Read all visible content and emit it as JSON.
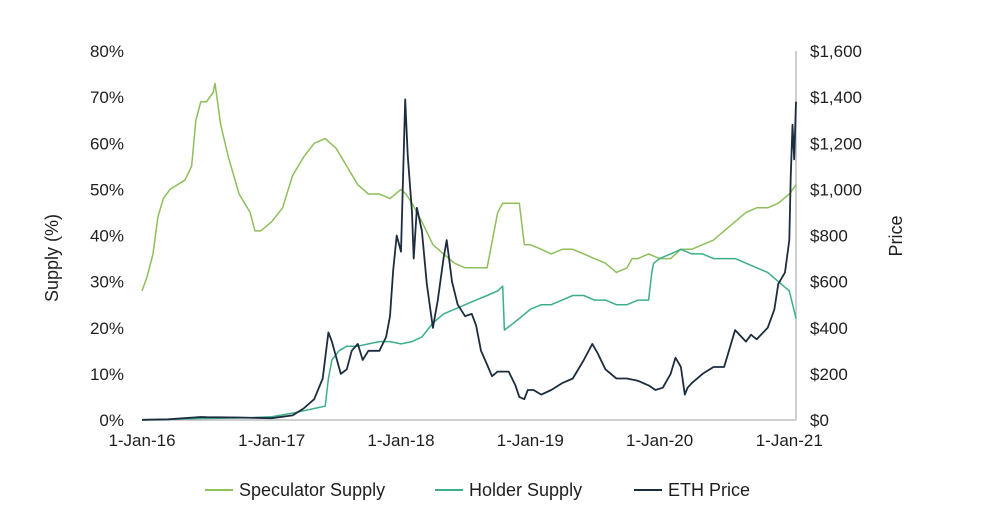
{
  "chart_data": {
    "type": "line",
    "title": "",
    "xlabel": "",
    "ylabel": "Supply (%)",
    "ylabel_right": "Price",
    "x_ticks": [
      "1-Jan-16",
      "1-Jan-17",
      "1-Jan-18",
      "1-Jan-19",
      "1-Jan-20",
      "1-Jan-21"
    ],
    "y_ticks_left": [
      "0%",
      "10%",
      "20%",
      "30%",
      "40%",
      "50%",
      "60%",
      "70%",
      "80%"
    ],
    "y_ticks_right": [
      "$0",
      "$200",
      "$400",
      "$600",
      "$800",
      "$1,000",
      "$1,200",
      "$1,400",
      "$1,600"
    ],
    "xlim": [
      "2016-01-01",
      "2021-01-20"
    ],
    "ylim_left": [
      0,
      80
    ],
    "ylim_right": [
      0,
      1600
    ],
    "grid": false,
    "legend_position": "bottom",
    "series": [
      {
        "name": "Speculator Supply",
        "axis": "left",
        "color": "#8dbf5a",
        "x": [
          "2016-01-01",
          "2016-01-15",
          "2016-02-01",
          "2016-02-15",
          "2016-03-01",
          "2016-03-20",
          "2016-04-10",
          "2016-05-01",
          "2016-05-20",
          "2016-06-01",
          "2016-06-15",
          "2016-07-01",
          "2016-07-20",
          "2016-07-25",
          "2016-08-10",
          "2016-09-01",
          "2016-10-01",
          "2016-11-01",
          "2016-11-15",
          "2016-12-01",
          "2017-01-01",
          "2017-02-01",
          "2017-03-01",
          "2017-04-01",
          "2017-05-01",
          "2017-06-01",
          "2017-07-01",
          "2017-08-01",
          "2017-09-01",
          "2017-10-01",
          "2017-11-01",
          "2017-12-01",
          "2018-01-01",
          "2018-01-15",
          "2018-02-01",
          "2018-03-01",
          "2018-04-01",
          "2018-05-01",
          "2018-06-01",
          "2018-07-01",
          "2018-08-01",
          "2018-09-01",
          "2018-10-01",
          "2018-10-15",
          "2018-10-20",
          "2018-11-15",
          "2018-12-01",
          "2018-12-15",
          "2018-12-20",
          "2019-01-01",
          "2019-02-01",
          "2019-03-01",
          "2019-04-01",
          "2019-05-01",
          "2019-06-01",
          "2019-07-01",
          "2019-08-01",
          "2019-09-01",
          "2019-10-01",
          "2019-10-15",
          "2019-11-01",
          "2019-12-01",
          "2020-01-01",
          "2020-02-01",
          "2020-03-01",
          "2020-04-01",
          "2020-05-01",
          "2020-06-01",
          "2020-07-01",
          "2020-08-01",
          "2020-09-01",
          "2020-10-01",
          "2020-11-01",
          "2020-12-01",
          "2021-01-01",
          "2021-01-20"
        ],
        "values": [
          28,
          31,
          36,
          44,
          48,
          50,
          51,
          52,
          55,
          65,
          69,
          69,
          71,
          73,
          64,
          57,
          49,
          45,
          41,
          41,
          43,
          46,
          53,
          57,
          60,
          61,
          59,
          55,
          51,
          49,
          49,
          48,
          50,
          49,
          47,
          43,
          38,
          36,
          34,
          33,
          33,
          33,
          45,
          47,
          47,
          47,
          47,
          38,
          38,
          38,
          37,
          36,
          37,
          37,
          36,
          35,
          34,
          32,
          33,
          35,
          35,
          36,
          35,
          35,
          37,
          37,
          38,
          39,
          41,
          43,
          45,
          46,
          46,
          47,
          49,
          51
        ]
      },
      {
        "name": "Holder Supply",
        "axis": "left",
        "color": "#3cae8c",
        "x": [
          "2016-01-01",
          "2016-06-01",
          "2016-11-01",
          "2017-01-01",
          "2017-03-01",
          "2017-04-01",
          "2017-05-01",
          "2017-06-01",
          "2017-06-10",
          "2017-06-20",
          "2017-07-10",
          "2017-08-01",
          "2017-09-01",
          "2017-10-01",
          "2017-11-01",
          "2017-12-01",
          "2018-01-01",
          "2018-02-01",
          "2018-03-01",
          "2018-04-01",
          "2018-05-01",
          "2018-06-01",
          "2018-07-01",
          "2018-08-01",
          "2018-09-01",
          "2018-10-01",
          "2018-10-15",
          "2018-10-20",
          "2018-11-15",
          "2018-12-01",
          "2019-01-01",
          "2019-02-01",
          "2019-03-01",
          "2019-04-01",
          "2019-05-01",
          "2019-06-01",
          "2019-07-01",
          "2019-08-01",
          "2019-09-01",
          "2019-10-01",
          "2019-11-01",
          "2019-12-01",
          "2019-12-10",
          "2019-12-15",
          "2020-01-01",
          "2020-02-01",
          "2020-03-01",
          "2020-04-01",
          "2020-05-01",
          "2020-06-01",
          "2020-07-01",
          "2020-08-01",
          "2020-09-01",
          "2020-10-01",
          "2020-11-01",
          "2020-12-01",
          "2021-01-01",
          "2021-01-20"
        ],
        "values": [
          0,
          0.3,
          0.5,
          0.7,
          1.5,
          2,
          2.5,
          3,
          9,
          13,
          15,
          16,
          16,
          16.5,
          17,
          17,
          16.5,
          17,
          18,
          21,
          23,
          24,
          25,
          26,
          27,
          28,
          29,
          19.5,
          21,
          22,
          24,
          25,
          25,
          26,
          27,
          27,
          26,
          26,
          25,
          25,
          26,
          26,
          32,
          34,
          35,
          36,
          37,
          36,
          36,
          35,
          35,
          35,
          34,
          33,
          32,
          30,
          28,
          22
        ]
      },
      {
        "name": "ETH Price",
        "axis": "right",
        "color": "#1c2d3f",
        "x": [
          "2016-01-01",
          "2016-03-15",
          "2016-06-15",
          "2016-07-01",
          "2016-10-01",
          "2017-01-01",
          "2017-03-01",
          "2017-04-01",
          "2017-05-01",
          "2017-05-25",
          "2017-06-10",
          "2017-06-20",
          "2017-07-15",
          "2017-08-01",
          "2017-08-15",
          "2017-09-01",
          "2017-09-15",
          "2017-10-01",
          "2017-11-01",
          "2017-11-20",
          "2017-12-01",
          "2017-12-10",
          "2017-12-20",
          "2018-01-01",
          "2018-01-13",
          "2018-01-20",
          "2018-02-01",
          "2018-02-06",
          "2018-02-15",
          "2018-03-01",
          "2018-03-15",
          "2018-04-01",
          "2018-04-15",
          "2018-05-01",
          "2018-05-10",
          "2018-05-25",
          "2018-06-10",
          "2018-07-01",
          "2018-07-20",
          "2018-08-01",
          "2018-08-15",
          "2018-09-01",
          "2018-09-15",
          "2018-10-01",
          "2018-11-01",
          "2018-11-20",
          "2018-12-01",
          "2018-12-15",
          "2018-12-25",
          "2019-01-10",
          "2019-02-01",
          "2019-03-01",
          "2019-04-01",
          "2019-05-01",
          "2019-06-01",
          "2019-06-25",
          "2019-07-10",
          "2019-08-01",
          "2019-09-01",
          "2019-10-01",
          "2019-11-01",
          "2019-12-01",
          "2019-12-20",
          "2020-01-10",
          "2020-02-01",
          "2020-02-15",
          "2020-03-01",
          "2020-03-12",
          "2020-03-20",
          "2020-04-01",
          "2020-05-01",
          "2020-06-01",
          "2020-07-01",
          "2020-08-01",
          "2020-09-01",
          "2020-09-15",
          "2020-10-01",
          "2020-11-01",
          "2020-11-20",
          "2020-12-01",
          "2020-12-20",
          "2021-01-01",
          "2021-01-05",
          "2021-01-10",
          "2021-01-15",
          "2021-01-20"
        ],
        "values": [
          1,
          3,
          13,
          12,
          11,
          8,
          20,
          50,
          90,
          180,
          380,
          340,
          200,
          220,
          300,
          330,
          260,
          300,
          300,
          360,
          450,
          650,
          800,
          730,
          1390,
          1150,
          900,
          700,
          920,
          820,
          590,
          400,
          520,
          700,
          780,
          600,
          500,
          450,
          460,
          410,
          300,
          240,
          190,
          210,
          210,
          150,
          100,
          90,
          130,
          130,
          110,
          130,
          160,
          180,
          260,
          330,
          290,
          220,
          180,
          180,
          170,
          150,
          130,
          140,
          200,
          270,
          230,
          110,
          140,
          160,
          200,
          230,
          230,
          390,
          340,
          370,
          350,
          400,
          480,
          590,
          640,
          780,
          1050,
          1280,
          1130,
          1380
        ]
      }
    ]
  }
}
